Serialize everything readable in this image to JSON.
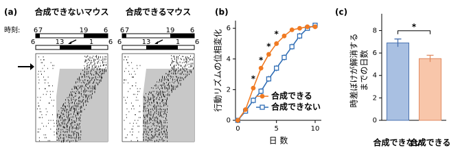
{
  "panel_a": {
    "label": "(a)",
    "time_label": "時刻:",
    "groups": [
      {
        "title": "合成できないマウス",
        "color": "#1f5fa8"
      },
      {
        "title": "合成できるマウス",
        "color": "#f07a22"
      }
    ],
    "before_ticks": [
      "6",
      "7",
      "19",
      "6"
    ],
    "after_ticks": [
      "6",
      "13",
      "1",
      "6"
    ]
  },
  "chart_data": [
    {
      "type": "line",
      "label": "(b)",
      "x_label": "日 数",
      "y_label": "行動リズムの位相変化",
      "x": [
        0,
        1,
        2,
        3,
        4,
        5,
        6,
        7,
        8,
        9,
        10
      ],
      "series": [
        {
          "name": "合成できる",
          "color": "#f07a22",
          "marker": "circle",
          "values": [
            0,
            0.7,
            2.1,
            3.4,
            4.3,
            5.0,
            5.5,
            5.9,
            6.0,
            6.1,
            6.1
          ]
        },
        {
          "name": "合成できない",
          "color": "#2f6db5",
          "marker": "square",
          "values": [
            0,
            0.6,
            1.3,
            1.9,
            2.7,
            3.4,
            4.1,
            4.8,
            5.5,
            6.0,
            6.2
          ],
          "errors": [
            0,
            0.1,
            0.2,
            0.2,
            0.2,
            0.2,
            0.2,
            0.2,
            0.2,
            0.1,
            0.1
          ]
        }
      ],
      "annotations": [
        {
          "x": 2,
          "y": 2.7,
          "text": "*"
        },
        {
          "x": 3,
          "y": 3.9,
          "text": "*"
        },
        {
          "x": 4,
          "y": 4.8,
          "text": "*"
        },
        {
          "x": 5,
          "y": 5.6,
          "text": "*"
        }
      ],
      "xlim": [
        -0.3,
        10.8
      ],
      "xticks": [
        0,
        5,
        10
      ],
      "ylim": [
        0,
        6.5
      ],
      "yticks": [
        0,
        2,
        4,
        6
      ],
      "legend": "lower-right"
    },
    {
      "type": "bar",
      "label": "(c)",
      "y_label": [
        "時差ぼけが解消する",
        "までの日数"
      ],
      "categories": [
        "合成できない",
        "合成できる"
      ],
      "values": [
        6.9,
        5.5
      ],
      "errors": [
        0.35,
        0.3
      ],
      "colors": [
        "#a9c0e2",
        "#f8c6aa"
      ],
      "edge_colors": [
        "#4a72b0",
        "#e08a60"
      ],
      "label_colors": [
        "#1f5fa8",
        "#f07a22"
      ],
      "significance": "*",
      "ylim": [
        0,
        9.5
      ],
      "yticks": [
        0,
        2,
        4,
        6,
        8
      ]
    }
  ]
}
